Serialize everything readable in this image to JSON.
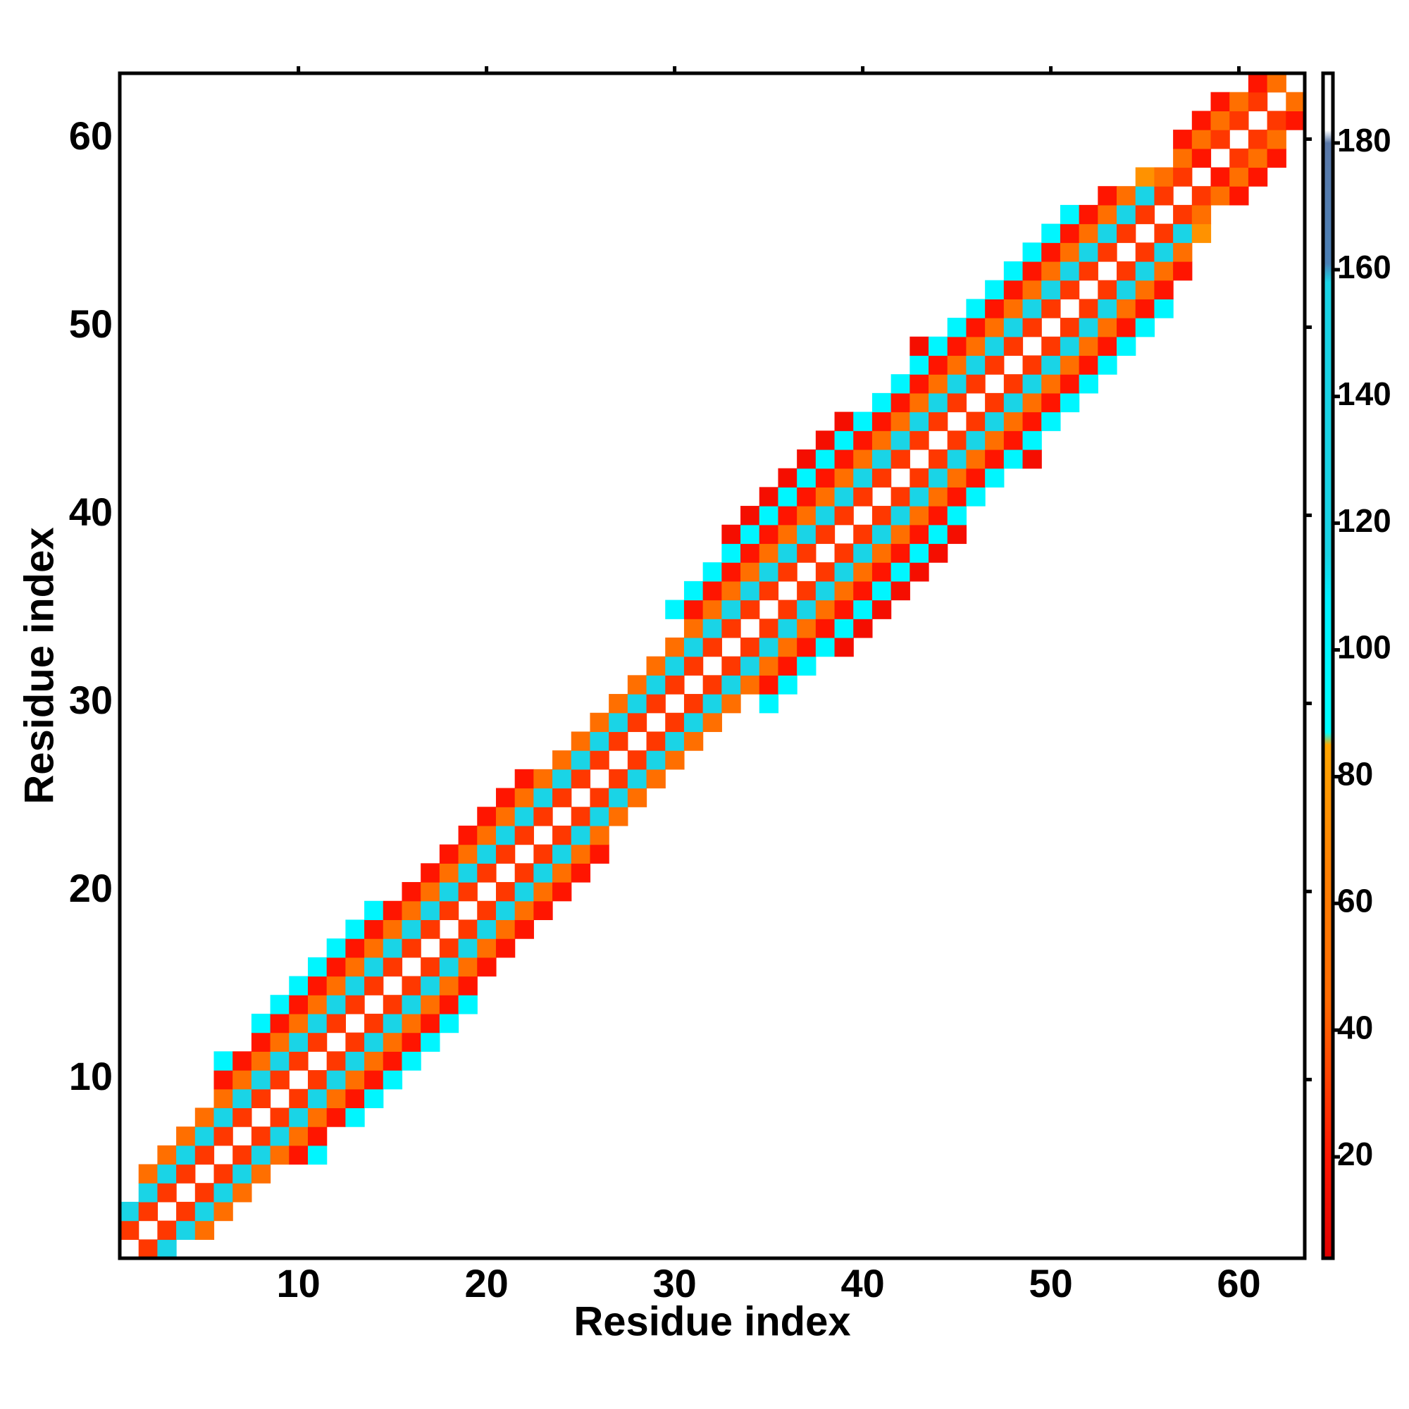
{
  "chart_data": {
    "type": "heatmap",
    "x_label": "Residue index",
    "y_label": "Residue index",
    "xlim": [
      0.5,
      63.5
    ],
    "ylim": [
      0.5,
      63.5
    ],
    "xticks": [
      10,
      20,
      30,
      40,
      50,
      60
    ],
    "yticks": [
      10,
      20,
      30,
      40,
      50,
      60
    ],
    "symmetric": true,
    "clim": [
      4,
      191
    ],
    "cticks": [
      20,
      40,
      60,
      80,
      100,
      120,
      140,
      160,
      180
    ],
    "colormap": [
      {
        "value": 4,
        "color": "#e00000"
      },
      {
        "value": 20,
        "color": "#ff1500"
      },
      {
        "value": 35,
        "color": "#ff4a00"
      },
      {
        "value": 45,
        "color": "#ff6a00"
      },
      {
        "value": 65,
        "color": "#ff7f00"
      },
      {
        "value": 85,
        "color": "#ffa500"
      },
      {
        "value": 87,
        "color": "#00ffff"
      },
      {
        "value": 108,
        "color": "#00f0ff"
      },
      {
        "value": 115,
        "color": "#1ad4e6"
      },
      {
        "value": 158,
        "color": "#1ad4e6"
      },
      {
        "value": 161,
        "color": "#4a7fb5"
      },
      {
        "value": 180,
        "color": "#5a78a8"
      },
      {
        "value": 182,
        "color": "#ffffff"
      },
      {
        "value": 191,
        "color": "#ffffff"
      }
    ],
    "rows": [
      {
        "y": 2,
        "x_start": 1,
        "values": [
          30
        ]
      },
      {
        "y": 3,
        "x_start": 1,
        "values": [
          125,
          30
        ]
      },
      {
        "y": 4,
        "x_start": 2,
        "values": [
          125,
          30
        ]
      },
      {
        "y": 5,
        "x_start": 2,
        "values": [
          50,
          125,
          30
        ]
      },
      {
        "y": 6,
        "x_start": 3,
        "values": [
          50,
          125,
          30
        ]
      },
      {
        "y": 7,
        "x_start": 4,
        "values": [
          50,
          125,
          30
        ]
      },
      {
        "y": 8,
        "x_start": 5,
        "values": [
          50,
          125,
          30
        ]
      },
      {
        "y": 9,
        "x_start": 6,
        "values": [
          50,
          125,
          30
        ]
      },
      {
        "y": 10,
        "x_start": 6,
        "values": [
          20,
          50,
          125,
          30
        ]
      },
      {
        "y": 11,
        "x_start": 6,
        "values": [
          100,
          20,
          50,
          125,
          30
        ]
      },
      {
        "y": 12,
        "x_start": 8,
        "values": [
          20,
          50,
          125,
          30
        ]
      },
      {
        "y": 13,
        "x_start": 8,
        "values": [
          100,
          20,
          50,
          125,
          30
        ]
      },
      {
        "y": 14,
        "x_start": 9,
        "values": [
          100,
          20,
          50,
          125,
          30
        ]
      },
      {
        "y": 15,
        "x_start": 10,
        "values": [
          100,
          20,
          50,
          125,
          30
        ]
      },
      {
        "y": 16,
        "x_start": 11,
        "values": [
          100,
          20,
          50,
          125,
          30
        ]
      },
      {
        "y": 17,
        "x_start": 12,
        "values": [
          100,
          20,
          50,
          125,
          30
        ]
      },
      {
        "y": 18,
        "x_start": 13,
        "values": [
          100,
          20,
          50,
          125,
          30
        ]
      },
      {
        "y": 19,
        "x_start": 14,
        "values": [
          100,
          20,
          50,
          125,
          30
        ]
      },
      {
        "y": 20,
        "x_start": 16,
        "values": [
          20,
          50,
          125,
          30
        ]
      },
      {
        "y": 21,
        "x_start": 17,
        "values": [
          20,
          50,
          125,
          30
        ]
      },
      {
        "y": 22,
        "x_start": 18,
        "values": [
          20,
          50,
          125,
          30
        ]
      },
      {
        "y": 23,
        "x_start": 19,
        "values": [
          20,
          50,
          125,
          30
        ]
      },
      {
        "y": 24,
        "x_start": 20,
        "values": [
          20,
          50,
          125,
          30
        ]
      },
      {
        "y": 25,
        "x_start": 21,
        "values": [
          20,
          50,
          125,
          30
        ]
      },
      {
        "y": 26,
        "x_start": 22,
        "values": [
          20,
          50,
          125,
          30
        ]
      },
      {
        "y": 27,
        "x_start": 24,
        "values": [
          50,
          125,
          30
        ]
      },
      {
        "y": 28,
        "x_start": 25,
        "values": [
          50,
          125,
          30
        ]
      },
      {
        "y": 29,
        "x_start": 26,
        "values": [
          50,
          125,
          30
        ]
      },
      {
        "y": 30,
        "x_start": 27,
        "values": [
          50,
          125,
          30
        ]
      },
      {
        "y": 31,
        "x_start": 28,
        "values": [
          50,
          125,
          30
        ]
      },
      {
        "y": 32,
        "x_start": 29,
        "values": [
          50,
          125,
          30
        ]
      },
      {
        "y": 33,
        "x_start": 30,
        "values": [
          50,
          125,
          30
        ]
      },
      {
        "y": 34,
        "x_start": 31,
        "values": [
          50,
          125,
          30
        ]
      },
      {
        "y": 35,
        "x_start": 30,
        "values": [
          100,
          20,
          50,
          125,
          30
        ]
      },
      {
        "y": 36,
        "x_start": 31,
        "values": [
          100,
          20,
          50,
          125,
          30
        ]
      },
      {
        "y": 37,
        "x_start": 32,
        "values": [
          100,
          20,
          50,
          125,
          30
        ]
      },
      {
        "y": 38,
        "x_start": 33,
        "values": [
          100,
          20,
          50,
          125,
          30
        ]
      },
      {
        "y": 39,
        "x_start": 33,
        "values": [
          15,
          100,
          20,
          50,
          125,
          30
        ]
      },
      {
        "y": 40,
        "x_start": 34,
        "values": [
          15,
          100,
          20,
          50,
          125,
          30
        ]
      },
      {
        "y": 41,
        "x_start": 35,
        "values": [
          15,
          100,
          20,
          50,
          125,
          30
        ]
      },
      {
        "y": 42,
        "x_start": 36,
        "values": [
          15,
          100,
          20,
          50,
          125,
          30
        ]
      },
      {
        "y": 43,
        "x_start": 37,
        "values": [
          15,
          100,
          20,
          50,
          125,
          30
        ]
      },
      {
        "y": 44,
        "x_start": 38,
        "values": [
          15,
          100,
          20,
          50,
          125,
          30
        ]
      },
      {
        "y": 45,
        "x_start": 39,
        "values": [
          15,
          100,
          20,
          50,
          125,
          30
        ]
      },
      {
        "y": 46,
        "x_start": 41,
        "values": [
          100,
          20,
          50,
          125,
          30
        ]
      },
      {
        "y": 47,
        "x_start": 42,
        "values": [
          100,
          20,
          50,
          125,
          30
        ]
      },
      {
        "y": 48,
        "x_start": 43,
        "values": [
          100,
          20,
          50,
          125,
          30
        ]
      },
      {
        "y": 49,
        "x_start": 43,
        "values": [
          15,
          100,
          20,
          50,
          125,
          30
        ]
      },
      {
        "y": 50,
        "x_start": 45,
        "values": [
          100,
          20,
          50,
          125,
          30
        ]
      },
      {
        "y": 51,
        "x_start": 46,
        "values": [
          100,
          20,
          50,
          125,
          30
        ]
      },
      {
        "y": 52,
        "x_start": 47,
        "values": [
          100,
          20,
          50,
          125,
          30
        ]
      },
      {
        "y": 53,
        "x_start": 48,
        "values": [
          100,
          20,
          50,
          125,
          30
        ]
      },
      {
        "y": 54,
        "x_start": 49,
        "values": [
          100,
          20,
          50,
          125,
          30
        ]
      },
      {
        "y": 55,
        "x_start": 50,
        "values": [
          100,
          20,
          50,
          125,
          30
        ]
      },
      {
        "y": 56,
        "x_start": 51,
        "values": [
          100,
          20,
          50,
          125,
          30
        ]
      },
      {
        "y": 57,
        "x_start": 53,
        "values": [
          20,
          50,
          125,
          30
        ]
      },
      {
        "y": 58,
        "x_start": 55,
        "values": [
          75,
          50,
          30
        ]
      },
      {
        "y": 59,
        "x_start": 57,
        "values": [
          50,
          20
        ]
      },
      {
        "y": 60,
        "x_start": 57,
        "values": [
          20,
          50,
          30
        ]
      },
      {
        "y": 61,
        "x_start": 58,
        "values": [
          20,
          50,
          30
        ]
      },
      {
        "y": 62,
        "x_start": 59,
        "values": [
          20,
          50,
          30
        ]
      },
      {
        "y": 63,
        "x_start": 61,
        "values": [
          20,
          50
        ]
      }
    ]
  }
}
